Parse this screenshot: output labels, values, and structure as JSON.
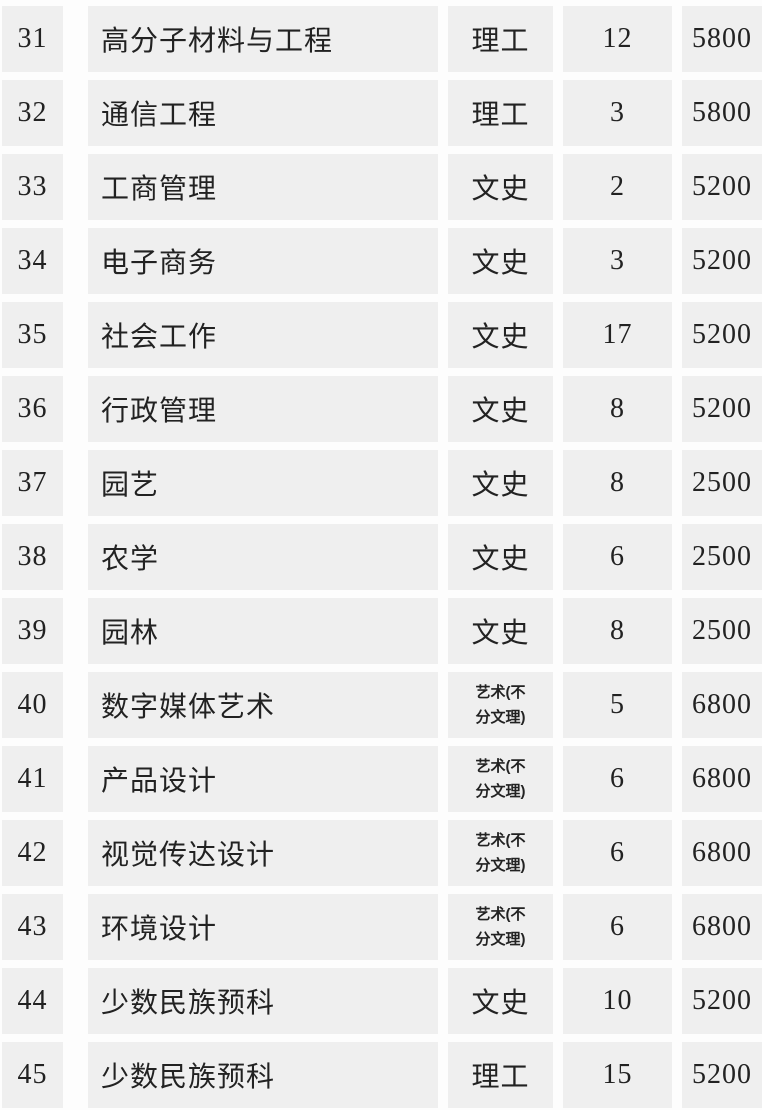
{
  "page": {
    "background_color": "#fdfdfd",
    "cell_background_color": "#efefef",
    "text_color": "#222222"
  },
  "table": {
    "rows": [
      {
        "no": "31",
        "major": "高分子材料与工程",
        "category_lines": [
          "理工"
        ],
        "count": "12",
        "fee": "5800"
      },
      {
        "no": "32",
        "major": "通信工程",
        "category_lines": [
          "理工"
        ],
        "count": "3",
        "fee": "5800"
      },
      {
        "no": "33",
        "major": "工商管理",
        "category_lines": [
          "文史"
        ],
        "count": "2",
        "fee": "5200"
      },
      {
        "no": "34",
        "major": "电子商务",
        "category_lines": [
          "文史"
        ],
        "count": "3",
        "fee": "5200"
      },
      {
        "no": "35",
        "major": "社会工作",
        "category_lines": [
          "文史"
        ],
        "count": "17",
        "fee": "5200"
      },
      {
        "no": "36",
        "major": "行政管理",
        "category_lines": [
          "文史"
        ],
        "count": "8",
        "fee": "5200"
      },
      {
        "no": "37",
        "major": "园艺",
        "category_lines": [
          "文史"
        ],
        "count": "8",
        "fee": "2500"
      },
      {
        "no": "38",
        "major": "农学",
        "category_lines": [
          "文史"
        ],
        "count": "6",
        "fee": "2500"
      },
      {
        "no": "39",
        "major": "园林",
        "category_lines": [
          "文史"
        ],
        "count": "8",
        "fee": "2500"
      },
      {
        "no": "40",
        "major": "数字媒体艺术",
        "category_lines": [
          "艺术(不",
          "分文理)"
        ],
        "count": "5",
        "fee": "6800"
      },
      {
        "no": "41",
        "major": "产品设计",
        "category_lines": [
          "艺术(不",
          "分文理)"
        ],
        "count": "6",
        "fee": "6800"
      },
      {
        "no": "42",
        "major": "视觉传达设计",
        "category_lines": [
          "艺术(不",
          "分文理)"
        ],
        "count": "6",
        "fee": "6800"
      },
      {
        "no": "43",
        "major": "环境设计",
        "category_lines": [
          "艺术(不",
          "分文理)"
        ],
        "count": "6",
        "fee": "6800"
      },
      {
        "no": "44",
        "major": "少数民族预科",
        "category_lines": [
          "文史"
        ],
        "count": "10",
        "fee": "5200"
      },
      {
        "no": "45",
        "major": "少数民族预科",
        "category_lines": [
          "理工"
        ],
        "count": "15",
        "fee": "5200"
      }
    ]
  }
}
